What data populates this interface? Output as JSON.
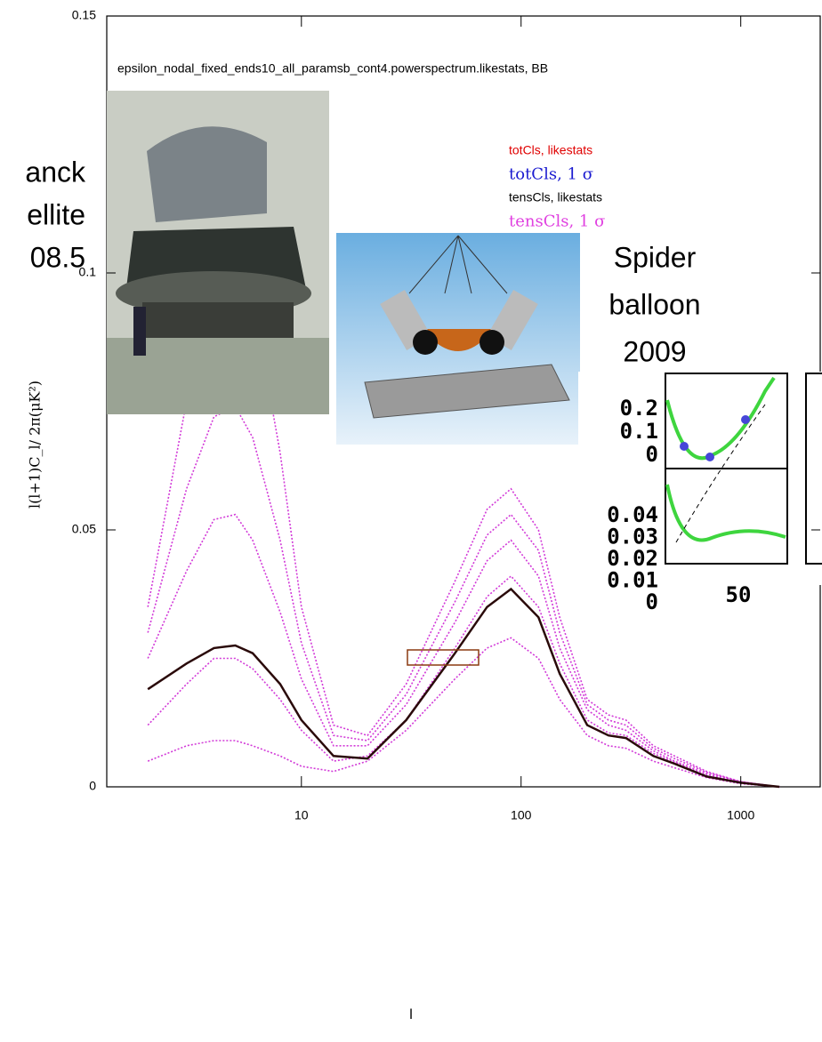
{
  "chart_data": {
    "type": "line",
    "title": "epsilon_nodal_fixed_ends10_all_paramsb_cont4.powerspectrum.likestats, BB",
    "x_label": "l",
    "y_label": "l(l+1)C_l/ 2π(μK²)",
    "log_x": true,
    "xlim": [
      1.3,
      2300
    ],
    "xticks": [
      10,
      100,
      1000
    ],
    "ylim": [
      0,
      0.15
    ],
    "yticks": [
      0,
      0.05,
      0.1,
      0.15
    ],
    "legend": [
      {
        "label": "totCls, likestats",
        "color": "#e00000"
      },
      {
        "label": "totCls, 1 σ",
        "color": "#1a1ad0"
      },
      {
        "label": "tensCls, likestats",
        "color": "#000000"
      },
      {
        "label": "tensCls, 1 σ",
        "color": "#e040e0"
      }
    ],
    "x": [
      2,
      3,
      4,
      5,
      6,
      8,
      10,
      14,
      20,
      30,
      50,
      70,
      90,
      120,
      150,
      200,
      250,
      300,
      400,
      500,
      700,
      1000,
      1500
    ],
    "series": [
      {
        "color": "#d23ad8",
        "values": [
          0.035,
          0.075,
          0.095,
          0.1,
          0.095,
          0.065,
          0.035,
          0.012,
          0.01,
          0.02,
          0.04,
          0.054,
          0.058,
          0.05,
          0.033,
          0.017,
          0.014,
          0.013,
          0.008,
          0.006,
          0.003,
          0.001,
          0
        ]
      },
      {
        "color": "#d23ad8",
        "values": [
          0.03,
          0.058,
          0.072,
          0.074,
          0.068,
          0.048,
          0.028,
          0.01,
          0.009,
          0.018,
          0.036,
          0.049,
          0.053,
          0.046,
          0.03,
          0.016,
          0.013,
          0.012,
          0.0075,
          0.0055,
          0.0028,
          0.001,
          0
        ]
      },
      {
        "color": "#d23ad8",
        "values": [
          0.025,
          0.042,
          0.052,
          0.053,
          0.048,
          0.034,
          0.021,
          0.008,
          0.008,
          0.016,
          0.032,
          0.044,
          0.048,
          0.041,
          0.027,
          0.015,
          0.012,
          0.011,
          0.007,
          0.005,
          0.0025,
          0.0009,
          0
        ]
      },
      {
        "color": "#d23ad8",
        "values": [
          0.012,
          0.02,
          0.025,
          0.025,
          0.023,
          0.017,
          0.011,
          0.005,
          0.006,
          0.013,
          0.027,
          0.037,
          0.041,
          0.035,
          0.024,
          0.013,
          0.0105,
          0.01,
          0.0065,
          0.0048,
          0.0022,
          0.0008,
          0
        ]
      },
      {
        "color": "#d23ad8",
        "values": [
          0.005,
          0.008,
          0.009,
          0.009,
          0.008,
          0.006,
          0.004,
          0.003,
          0.005,
          0.011,
          0.021,
          0.027,
          0.029,
          0.025,
          0.017,
          0.01,
          0.008,
          0.0075,
          0.005,
          0.0037,
          0.0018,
          0.0006,
          0
        ]
      },
      {
        "color": "#2a0a0a",
        "values": [
          0.019,
          0.024,
          0.027,
          0.0275,
          0.026,
          0.02,
          0.013,
          0.006,
          0.0055,
          0.013,
          0.026,
          0.035,
          0.0385,
          0.033,
          0.022,
          0.012,
          0.01,
          0.0095,
          0.006,
          0.0045,
          0.002,
          0.0008,
          0
        ]
      }
    ],
    "annotations": {
      "planck": [
        "anck",
        "ellite",
        "08.5"
      ],
      "spider": [
        "Spider",
        "balloon",
        "2009"
      ]
    },
    "inset": {
      "top_labels": [
        "0.2",
        "0.1",
        "0"
      ],
      "bottom_labels": [
        "0.04",
        "0.03",
        "0.02",
        "0.01",
        "0"
      ],
      "x_label": "50"
    }
  }
}
